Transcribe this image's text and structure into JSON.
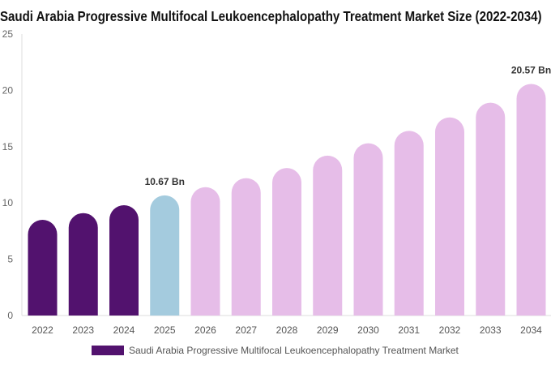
{
  "chart_data": {
    "type": "bar",
    "title": "Saudi Arabia Progressive Multifocal Leukoencephalopathy Treatment Market Size (2022-2034)",
    "categories": [
      "2022",
      "2023",
      "2024",
      "2025",
      "2026",
      "2027",
      "2028",
      "2029",
      "2030",
      "2031",
      "2032",
      "2033",
      "2034"
    ],
    "series": [
      {
        "name": "Saudi Arabia Progressive Multifocal Leukoencephalopathy Treatment Market",
        "values": [
          8.5,
          9.1,
          9.8,
          10.67,
          11.4,
          12.2,
          13.1,
          14.2,
          15.3,
          16.4,
          17.6,
          18.9,
          20.57
        ]
      }
    ],
    "bar_colors": [
      "#52126e",
      "#52126e",
      "#52126e",
      "#a4cbde",
      "#e6bde8",
      "#e6bde8",
      "#e6bde8",
      "#e6bde8",
      "#e6bde8",
      "#e6bde8",
      "#e6bde8",
      "#e6bde8",
      "#e6bde8"
    ],
    "data_labels": [
      {
        "index": 3,
        "text": "10.67 Bn"
      },
      {
        "index": 12,
        "text": "20.57 Bn"
      }
    ],
    "y_ticks": [
      "0",
      "5",
      "10",
      "15",
      "20",
      "25"
    ],
    "ylim": [
      0,
      25
    ],
    "xlabel": "",
    "ylabel": "",
    "grid": false,
    "legend_position": "bottom"
  }
}
